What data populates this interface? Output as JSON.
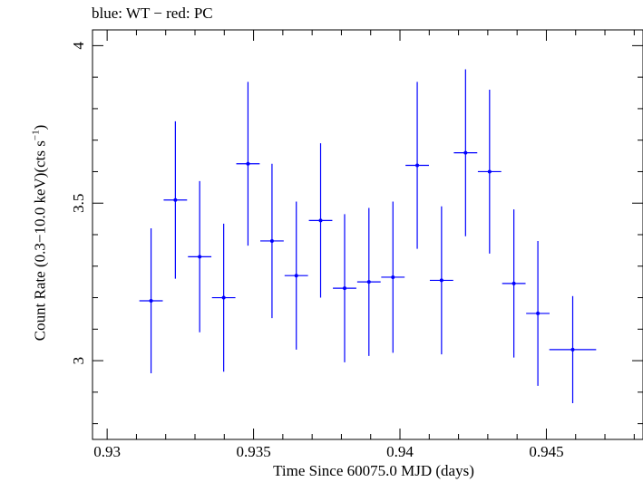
{
  "chart_data": {
    "type": "scatter",
    "title": "blue: WT − red: PC",
    "xlabel": "Time Since 60075.0 MJD (days)",
    "ylabel": "Count Rate (0.3−10.0 keV)(cts s",
    "ylabel_sup": "−1",
    "ylabel_end": ")",
    "xlim": [
      0.9295,
      0.9483
    ],
    "ylim": [
      2.75,
      4.05
    ],
    "x_ticks": [
      "0.93",
      "0.935",
      "0.94",
      "0.945"
    ],
    "x_tick_values": [
      0.93,
      0.935,
      0.94,
      0.945
    ],
    "y_ticks": [
      "3",
      "3.5",
      "4"
    ],
    "y_tick_values": [
      3.0,
      3.5,
      4.0
    ],
    "series": [
      {
        "color": "#0000ff",
        "points": [
          {
            "x": 0.9315,
            "xerr": 0.0004,
            "y": 3.19,
            "yerr": 0.23
          },
          {
            "x": 0.93233,
            "xerr": 0.0004,
            "y": 3.51,
            "yerr": 0.25
          },
          {
            "x": 0.93316,
            "xerr": 0.0004,
            "y": 3.33,
            "yerr": 0.24
          },
          {
            "x": 0.93398,
            "xerr": 0.0004,
            "y": 3.2,
            "yerr": 0.235
          },
          {
            "x": 0.93481,
            "xerr": 0.0004,
            "y": 3.625,
            "yerr": 0.26
          },
          {
            "x": 0.93563,
            "xerr": 0.0004,
            "y": 3.38,
            "yerr": 0.245
          },
          {
            "x": 0.93646,
            "xerr": 0.0004,
            "y": 3.27,
            "yerr": 0.235
          },
          {
            "x": 0.93729,
            "xerr": 0.0004,
            "y": 3.445,
            "yerr": 0.245
          },
          {
            "x": 0.93811,
            "xerr": 0.0004,
            "y": 3.23,
            "yerr": 0.235
          },
          {
            "x": 0.93894,
            "xerr": 0.0004,
            "y": 3.25,
            "yerr": 0.235
          },
          {
            "x": 0.93976,
            "xerr": 0.0004,
            "y": 3.265,
            "yerr": 0.24
          },
          {
            "x": 0.94059,
            "xerr": 0.0004,
            "y": 3.62,
            "yerr": 0.265
          },
          {
            "x": 0.94142,
            "xerr": 0.0004,
            "y": 3.255,
            "yerr": 0.235
          },
          {
            "x": 0.94224,
            "xerr": 0.0004,
            "y": 3.66,
            "yerr": 0.265
          },
          {
            "x": 0.94306,
            "xerr": 0.0004,
            "y": 3.6,
            "yerr": 0.26
          },
          {
            "x": 0.94389,
            "xerr": 0.0004,
            "y": 3.245,
            "yerr": 0.235
          },
          {
            "x": 0.94471,
            "xerr": 0.0004,
            "y": 3.15,
            "yerr": 0.23
          },
          {
            "x": 0.9459,
            "xerr": 0.0008,
            "y": 3.035,
            "yerr": 0.17
          }
        ]
      }
    ]
  }
}
